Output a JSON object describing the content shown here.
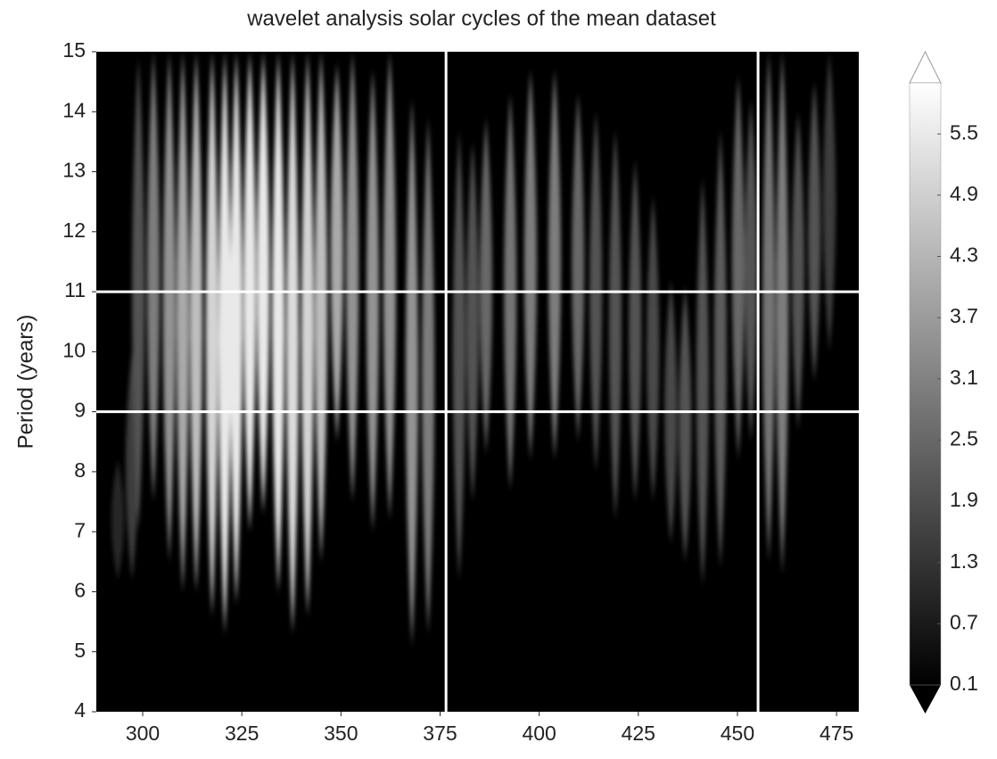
{
  "chart_data": {
    "type": "heatmap",
    "title": "wavelet analysis solar cycles of the mean dataset",
    "ylabel": "Period (years)",
    "xlim": [
      288.3,
      480.6
    ],
    "ylim": [
      4,
      15
    ],
    "xticks": [
      300,
      325,
      350,
      375,
      400,
      425,
      450,
      475
    ],
    "yticks": [
      4,
      5,
      6,
      7,
      8,
      9,
      10,
      11,
      12,
      13,
      14,
      15
    ],
    "x": [
      293.7,
      297.3,
      298.9,
      302.7,
      306.7,
      310.1,
      313.5,
      317.5,
      320.7,
      323.6,
      327.0,
      330.4,
      334.2,
      337.8,
      341.6,
      345.0,
      349.0,
      352.9,
      358.0,
      362.3,
      367.9,
      372.0,
      379.8,
      383.2,
      386.6,
      392.7,
      397.8,
      403.9,
      409.8,
      414.3,
      419.2,
      424.2,
      428.7,
      433.2,
      436.8,
      441.2,
      445.7,
      450.2,
      453.4,
      457.9,
      461.3,
      465.3,
      469.4,
      473.2
    ],
    "ymin": [
      6.2,
      6.2,
      7,
      7.5,
      6.5,
      6,
      6,
      5.6,
      5.3,
      5.8,
      7,
      7.3,
      6,
      5.3,
      5.6,
      6.5,
      8.5,
      7.5,
      7,
      7.2,
      5.1,
      5.3,
      6.2,
      7.5,
      8.3,
      7.7,
      8.2,
      8.2,
      8.5,
      8,
      7.2,
      7.5,
      7.5,
      6.8,
      6.5,
      6.1,
      6.4,
      8.2,
      8.5,
      6.5,
      6.3,
      8.7,
      9.5,
      10
    ],
    "ymax": [
      8.2,
      10,
      14.9,
      15,
      15,
      15,
      15,
      15,
      15,
      15,
      15,
      15,
      15,
      15,
      15,
      15,
      14.8,
      15,
      14.7,
      15,
      14.2,
      13.9,
      13.7,
      13.5,
      13.9,
      14.3,
      14.7,
      14.7,
      14.3,
      14,
      13.7,
      13.2,
      12.6,
      11.2,
      11.1,
      12.9,
      13.7,
      14.6,
      14.2,
      15,
      15,
      14,
      14.5,
      15
    ],
    "values": [
      1,
      1.5,
      2,
      3,
      3.5,
      4,
      4.5,
      5,
      5.5,
      5.5,
      5.5,
      5.5,
      5.5,
      5.2,
      5,
      4.5,
      4,
      3.5,
      3.5,
      3.5,
      3.5,
      3,
      2,
      2,
      2.5,
      2.8,
      3,
      3,
      2.5,
      2,
      2,
      2,
      1.8,
      1.8,
      2,
      2,
      2.2,
      2.5,
      2,
      2.8,
      3,
      2,
      2,
      1.5
    ],
    "reference_lines": {
      "x": [
        376.5,
        455.2
      ],
      "y": [
        9,
        11
      ]
    },
    "colorbar": {
      "lim": [
        0.1,
        6.0
      ],
      "ticks": [
        0.1,
        0.7,
        1.3,
        1.9,
        2.5,
        3.1,
        3.7,
        4.3,
        4.9,
        5.5
      ]
    }
  }
}
